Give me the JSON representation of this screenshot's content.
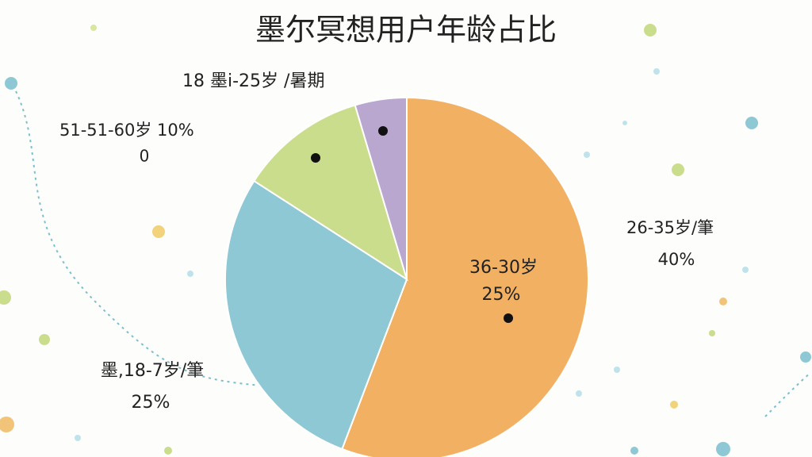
{
  "chart_data": {
    "type": "pie",
    "title": "墨尔冥想用户年龄占比",
    "values": [
      55.8,
      28.3,
      11.3,
      4.6
    ],
    "colors": [
      "#f2b062",
      "#8fc8d5",
      "#cadd8c",
      "#baa7d0"
    ],
    "annotations": [
      "18 墨i-25岁 /暑期",
      "51-51-60岁 10%",
      "0",
      "26-35岁/筆",
      "40%",
      "36-30岁",
      "25%",
      "墨,18-7岁/筆",
      "25%"
    ]
  }
}
